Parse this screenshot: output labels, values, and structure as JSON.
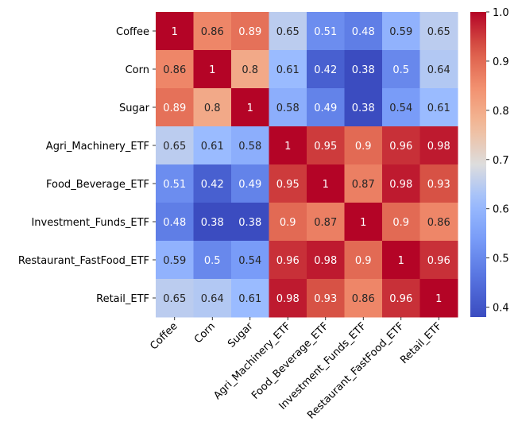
{
  "chart_data": {
    "type": "heatmap",
    "title": "",
    "xlabel": "",
    "ylabel": "",
    "categories": [
      "Coffee",
      "Corn",
      "Sugar",
      "Agri_Machinery_ETF",
      "Food_Beverage_ETF",
      "Investment_Funds_ETF",
      "Restaurant_FastFood_ETF",
      "Retail_ETF"
    ],
    "rows": [
      "Coffee",
      "Corn",
      "Sugar",
      "Agri_Machinery_ETF",
      "Food_Beverage_ETF",
      "Investment_Funds_ETF",
      "Restaurant_FastFood_ETF",
      "Retail_ETF"
    ],
    "values": [
      [
        1,
        0.86,
        0.89,
        0.65,
        0.51,
        0.48,
        0.59,
        0.65
      ],
      [
        0.86,
        1,
        0.8,
        0.61,
        0.42,
        0.38,
        0.5,
        0.64
      ],
      [
        0.89,
        0.8,
        1,
        0.58,
        0.49,
        0.38,
        0.54,
        0.61
      ],
      [
        0.65,
        0.61,
        0.58,
        1,
        0.95,
        0.9,
        0.96,
        0.98
      ],
      [
        0.51,
        0.42,
        0.49,
        0.95,
        1,
        0.87,
        0.98,
        0.93
      ],
      [
        0.48,
        0.38,
        0.38,
        0.9,
        0.87,
        1,
        0.9,
        0.86
      ],
      [
        0.59,
        0.5,
        0.54,
        0.96,
        0.98,
        0.9,
        1,
        0.96
      ],
      [
        0.65,
        0.64,
        0.61,
        0.98,
        0.93,
        0.86,
        0.96,
        1
      ]
    ],
    "colormap": "coolwarm",
    "vmin": 0.38,
    "vmax": 1.0,
    "colorbar_ticks": [
      0.4,
      0.5,
      0.6,
      0.7,
      0.8,
      0.9,
      1.0
    ],
    "colorbar_tick_labels": [
      "0.4",
      "0.5",
      "0.6",
      "0.7",
      "0.8",
      "0.9",
      "1.0"
    ],
    "annotations": true,
    "grid": false
  }
}
